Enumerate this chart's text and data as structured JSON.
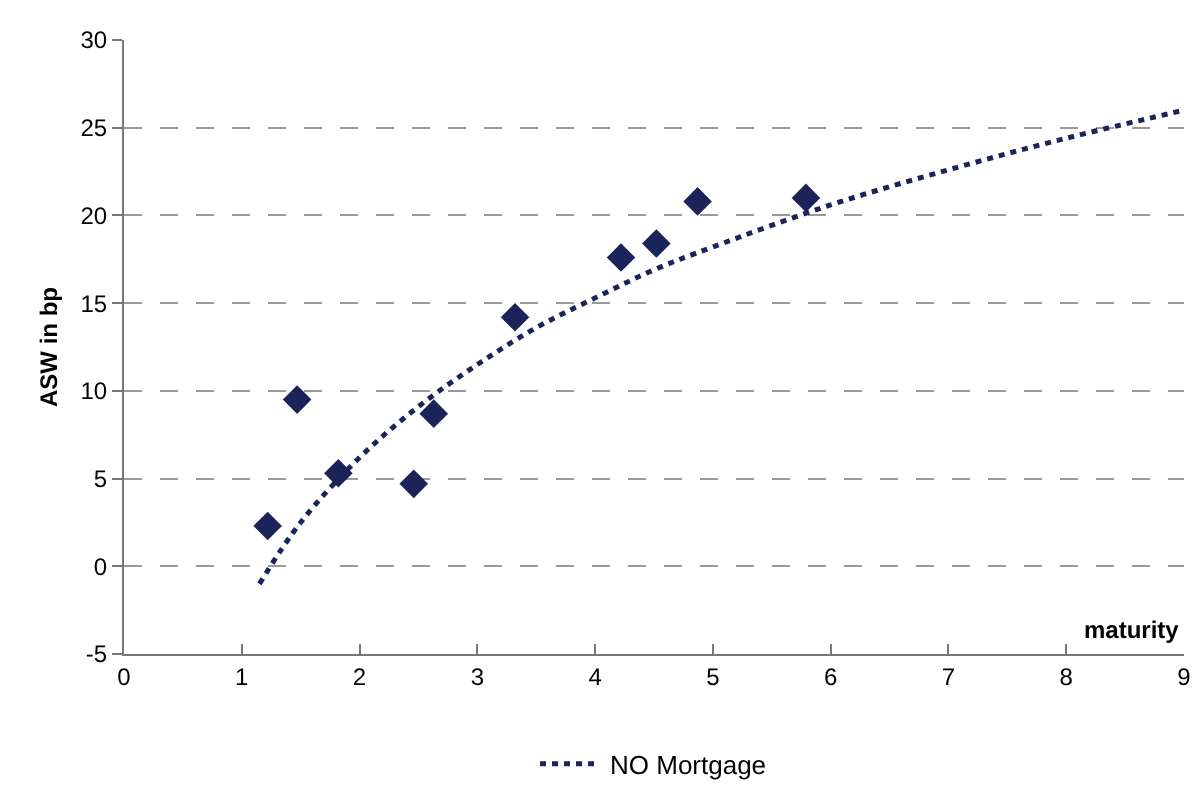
{
  "chart_data": {
    "type": "scatter",
    "xlabel": "maturity",
    "ylabel": "ASW in bp",
    "xlim": [
      0,
      9
    ],
    "xticks": [
      0,
      1,
      2,
      3,
      4,
      5,
      6,
      7,
      8,
      9
    ],
    "ylim": [
      -5,
      30
    ],
    "yticks": [
      -5,
      0,
      5,
      10,
      15,
      20,
      25,
      30
    ],
    "grid": "y",
    "legend": "bottom",
    "series": [
      {
        "color": "#1b2459",
        "marker": "diamond",
        "x": [
          1.22,
          1.47,
          1.82,
          2.46,
          2.63,
          3.32,
          4.22,
          4.52,
          4.87,
          5.79
        ],
        "values": [
          2.3,
          9.5,
          5.3,
          4.7,
          8.7,
          14.2,
          17.6,
          18.4,
          20.8,
          21.0
        ]
      },
      {
        "type": "line",
        "name": "NO Mortgage",
        "color": "#1b2459",
        "line_style": "dotted",
        "x": [
          1.15,
          1.5,
          2,
          2.5,
          3,
          3.5,
          4,
          4.5,
          5,
          6,
          7,
          8,
          9
        ],
        "values": [
          -1,
          2.5,
          6.2,
          9.1,
          11.5,
          13.6,
          15.3,
          16.9,
          18.2,
          20.6,
          22.6,
          24.4,
          26
        ]
      }
    ]
  }
}
